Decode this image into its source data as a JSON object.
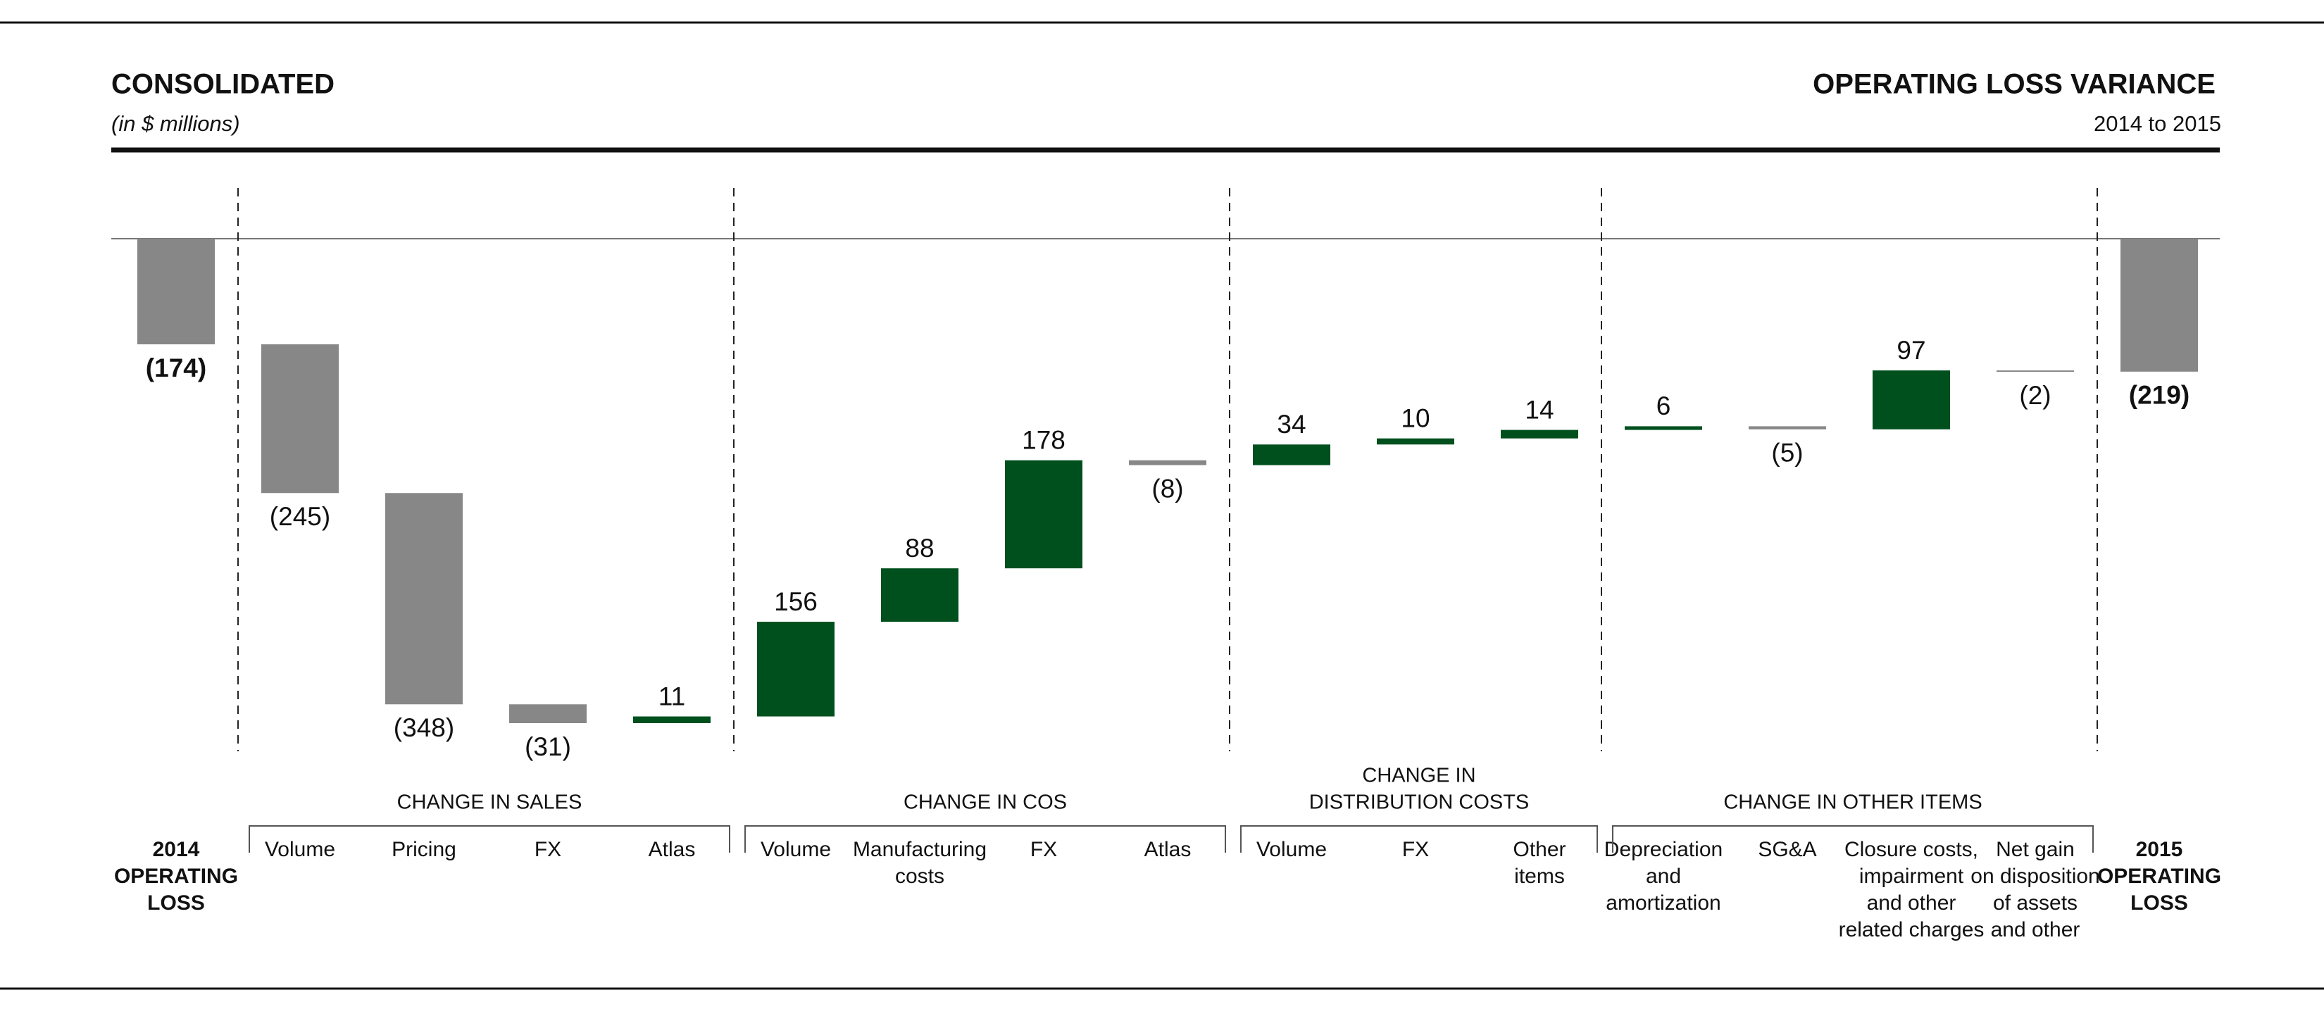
{
  "chart_data": {
    "type": "waterfall",
    "title": "CONSOLIDATED",
    "subtitle": "(in $ millions)",
    "right_title": "OPERATING LOSS VARIANCE",
    "right_subtitle": "2014 to 2015",
    "colors": {
      "increase": "#00501e",
      "decrease": "#878787",
      "total": "#878787"
    },
    "start": {
      "category": [
        "2014",
        "OPERATING",
        "LOSS"
      ],
      "value": -174,
      "value_label": "(174)"
    },
    "groups": [
      {
        "name": [
          "CHANGE IN SALES"
        ],
        "categories": [
          [
            "Volume"
          ],
          [
            "Pricing"
          ],
          [
            "FX"
          ],
          [
            "Atlas"
          ]
        ],
        "values": [
          -245,
          -348,
          -31,
          11
        ],
        "value_labels": [
          "(245)",
          "(348)",
          "(31)",
          "11"
        ]
      },
      {
        "name": [
          "CHANGE IN COS"
        ],
        "categories": [
          [
            "Volume"
          ],
          [
            "Manufacturing",
            "costs"
          ],
          [
            "FX"
          ],
          [
            "Atlas"
          ]
        ],
        "values": [
          156,
          88,
          178,
          -8
        ],
        "value_labels": [
          "156",
          "88",
          "178",
          "(8)"
        ]
      },
      {
        "name": [
          "CHANGE IN",
          "DISTRIBUTION COSTS"
        ],
        "categories": [
          [
            "Volume"
          ],
          [
            "FX"
          ],
          [
            "Other",
            "items"
          ]
        ],
        "values": [
          34,
          10,
          14
        ],
        "value_labels": [
          "34",
          "10",
          "14"
        ]
      },
      {
        "name": [
          "CHANGE IN OTHER ITEMS"
        ],
        "categories": [
          [
            "Depreciation",
            "and",
            "amortization"
          ],
          [
            "SG&A"
          ],
          [
            "Closure costs,",
            "impairment",
            "and other",
            "related charges"
          ],
          [
            "Net gain",
            "on disposition",
            "of assets",
            "and other"
          ]
        ],
        "values": [
          6,
          -5,
          97,
          -2
        ],
        "value_labels": [
          "6",
          "(5)",
          "97",
          "(2)"
        ]
      }
    ],
    "end": {
      "category": [
        "2015",
        "OPERATING",
        "LOSS"
      ],
      "value": -219,
      "value_label": "(219)"
    }
  }
}
